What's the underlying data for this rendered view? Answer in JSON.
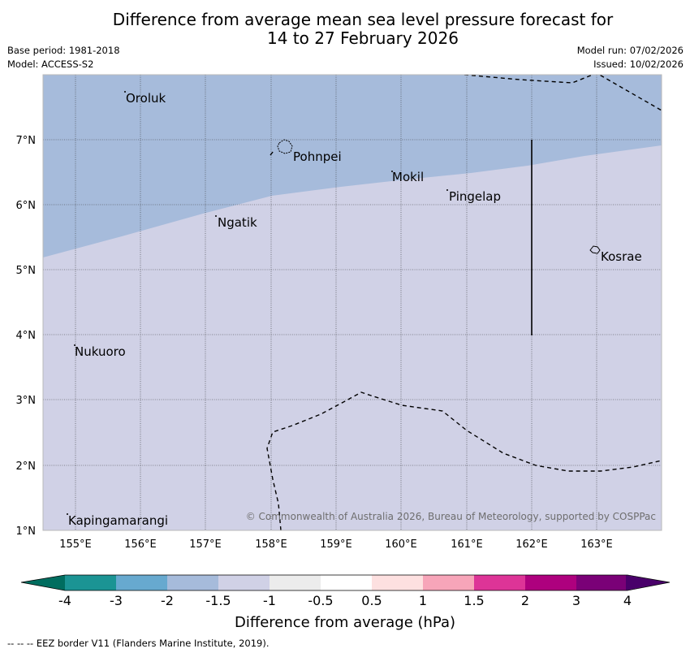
{
  "title": {
    "line1": "Difference from average mean sea level pressure forecast for",
    "line2": "14 to 27 February 2026"
  },
  "meta": {
    "base_period": "Base period: 1981-2018",
    "model": "Model: ACCESS-S2",
    "model_run": "Model run: 07/02/2026",
    "issued": "Issued: 10/02/2026"
  },
  "map": {
    "lon_ticks": [
      "155°E",
      "156°E",
      "157°E",
      "158°E",
      "159°E",
      "160°E",
      "161°E",
      "162°E",
      "163°E"
    ],
    "lat_ticks": [
      "7°N",
      "6°N",
      "5°N",
      "4°N",
      "3°N",
      "2°N",
      "1°N"
    ],
    "places": [
      "Oroluk",
      "Pohnpei",
      "Mokil",
      "Pingelap",
      "Ngatik",
      "Kosrae",
      "Nukuoro",
      "Kapingamarangi"
    ],
    "shading": {
      "north_region": "-2 to -1.5 hPa",
      "south_region": "-1.5 to -1 hPa"
    },
    "copyright": "© Commonwealth of Australia 2026, Bureau of Meteorology, supported by COSPPac",
    "colors": {
      "north_fill": "#a6bbdb",
      "south_fill": "#d0d1e6"
    }
  },
  "colorbar": {
    "tick_labels": [
      "-4",
      "-3",
      "-2",
      "-1.5",
      "-1",
      "-0.5",
      "0.5",
      "1",
      "1.5",
      "2",
      "3",
      "4"
    ],
    "colors": [
      "#006d5f",
      "#1b9494",
      "#67a9cf",
      "#a6bbdb",
      "#d0d1e6",
      "#ececec",
      "#ffffff",
      "#fde0e0",
      "#f7a5b9",
      "#dd3497",
      "#ae017e",
      "#7a0177",
      "#49006a"
    ],
    "label": "Difference from average (hPa)"
  },
  "footer": {
    "eez_note": "--  --  -- EEZ border V11 (Flanders Marine Institute, 2019)."
  }
}
